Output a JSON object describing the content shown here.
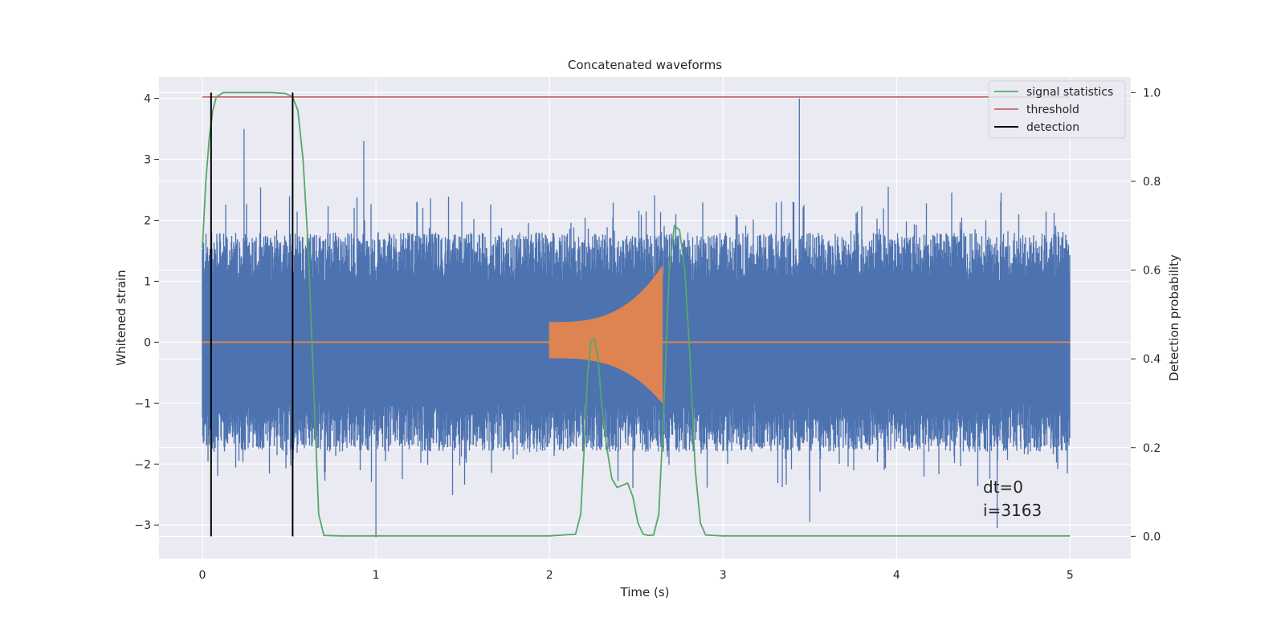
{
  "chart_data": {
    "type": "line",
    "title": "Concatenated waveforms",
    "xlabel": "Time (s)",
    "ylabel": "Whitened strain",
    "ylabel_right": "Detection probability",
    "xlim": [
      -0.25,
      5.35
    ],
    "ylim": [
      -3.55,
      4.35
    ],
    "ylim_right": [
      -0.05,
      1.035
    ],
    "x_ticks": [
      0,
      1,
      2,
      3,
      4,
      5
    ],
    "y_ticks": [
      -3,
      -2,
      -1,
      0,
      1,
      2,
      3,
      4
    ],
    "y_ticks_right": [
      0.0,
      0.2,
      0.4,
      0.6,
      0.8,
      1.0
    ],
    "x_tick_labels": [
      "0",
      "1",
      "2",
      "3",
      "4",
      "5"
    ],
    "y_tick_labels": [
      "−3",
      "−2",
      "−1",
      "0",
      "1",
      "2",
      "3",
      "4"
    ],
    "y_tick_labels_right": [
      "0.0",
      "0.2",
      "0.4",
      "0.6",
      "0.8",
      "1.0"
    ],
    "grid": true,
    "legend_position": "top-right",
    "colors": {
      "background": "#eaeaf2",
      "noise": "#4c72b0",
      "injection": "#dd8452",
      "signal_statistics": "#55a868",
      "threshold": "#c44e52",
      "detection": "#000000"
    },
    "series": [
      {
        "name": "",
        "axis": "left",
        "role": "whitened_strain_noise",
        "x_range": [
          0,
          5
        ],
        "amplitude_envelope": 1.8,
        "peak_spikes": [
          {
            "x": 0.24,
            "y": 3.5
          },
          {
            "x": 0.93,
            "y": 3.3
          },
          {
            "x": 1.0,
            "y": -3.2
          },
          {
            "x": 3.44,
            "y": 4.0
          },
          {
            "x": 3.5,
            "y": -2.95
          },
          {
            "x": 4.58,
            "y": -3.05
          }
        ]
      },
      {
        "name": "",
        "axis": "left",
        "role": "injected_chirp",
        "x_range": [
          2.0,
          2.65
        ],
        "amplitude_start": 0.33,
        "amplitude_peak": 1.25,
        "peak_x": 2.64
      },
      {
        "name": "signal statistics",
        "axis": "right",
        "x": [
          0.0,
          0.02,
          0.04,
          0.06,
          0.08,
          0.12,
          0.2,
          0.3,
          0.4,
          0.48,
          0.52,
          0.55,
          0.58,
          0.61,
          0.64,
          0.67,
          0.7,
          0.8,
          1.0,
          1.5,
          2.0,
          2.15,
          2.18,
          2.2,
          2.22,
          2.24,
          2.26,
          2.28,
          2.3,
          2.33,
          2.36,
          2.39,
          2.42,
          2.45,
          2.48,
          2.51,
          2.54,
          2.57,
          2.6,
          2.63,
          2.66,
          2.69,
          2.72,
          2.75,
          2.78,
          2.81,
          2.84,
          2.87,
          2.9,
          3.0,
          4.0,
          5.0
        ],
        "values": [
          0.65,
          0.8,
          0.9,
          0.96,
          0.99,
          1.0,
          1.0,
          1.0,
          1.0,
          0.998,
          0.99,
          0.96,
          0.85,
          0.65,
          0.35,
          0.05,
          0.002,
          0.001,
          0.001,
          0.001,
          0.001,
          0.005,
          0.05,
          0.2,
          0.37,
          0.44,
          0.445,
          0.4,
          0.3,
          0.2,
          0.13,
          0.11,
          0.115,
          0.12,
          0.09,
          0.03,
          0.005,
          0.002,
          0.003,
          0.05,
          0.3,
          0.6,
          0.7,
          0.69,
          0.6,
          0.4,
          0.15,
          0.03,
          0.003,
          0.001,
          0.001,
          0.001
        ]
      },
      {
        "name": "threshold",
        "axis": "right",
        "x": [
          0,
          5
        ],
        "values": [
          0.99,
          0.99
        ]
      },
      {
        "name": "detection",
        "axis": "right",
        "vlines_x": [
          0.05,
          0.52
        ],
        "vline_range": [
          0.0,
          1.0
        ]
      }
    ],
    "annotations": [
      "dt=0",
      "i=3163"
    ]
  }
}
